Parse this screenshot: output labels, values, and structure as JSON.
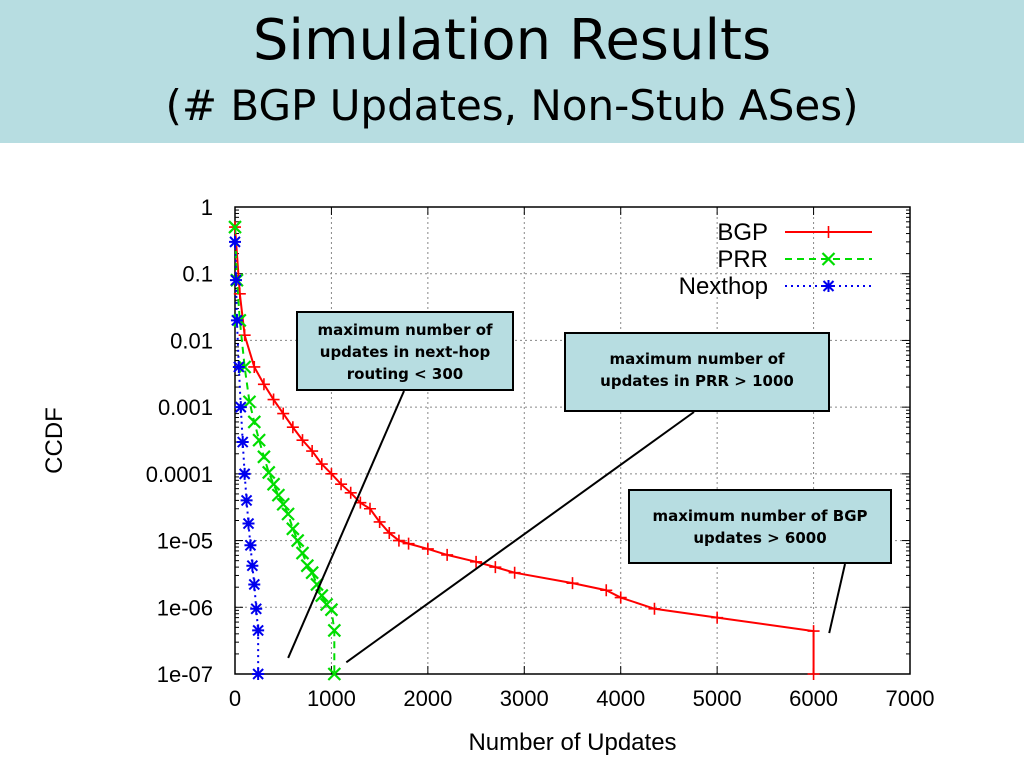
{
  "slide": {
    "title": "Simulation Results",
    "subtitle": "(# BGP Updates, Non-Stub ASes)",
    "accent_color": "#b7dde1"
  },
  "chart_data": {
    "type": "line",
    "xlabel": "Number of Updates",
    "ylabel": "CCDF",
    "xlim": [
      0,
      7000
    ],
    "ylim": [
      1e-07,
      1
    ],
    "yscale": "log",
    "grid": true,
    "legend_position": "top-right",
    "x_ticks": [
      "0",
      "1000",
      "2000",
      "3000",
      "4000",
      "5000",
      "6000",
      "7000"
    ],
    "y_ticks": [
      "1e-07",
      "1e-06",
      "1e-05",
      "0.0001",
      "0.001",
      "0.01",
      "0.1",
      "1"
    ],
    "series": [
      {
        "name": "BGP",
        "color": "#ff0000",
        "marker": "+",
        "linestyle": "solid",
        "x": [
          0,
          50,
          100,
          200,
          300,
          400,
          500,
          600,
          700,
          800,
          900,
          1000,
          1100,
          1200,
          1300,
          1400,
          1500,
          1600,
          1700,
          1800,
          2000,
          2200,
          2500,
          2700,
          2900,
          3500,
          3850,
          4000,
          4350,
          5000,
          6000,
          6000
        ],
        "y": [
          0.5,
          0.05,
          0.012,
          0.004,
          0.0022,
          0.0013,
          0.0008,
          0.0005,
          0.00032,
          0.00022,
          0.00014,
          0.0001,
          7e-05,
          5.2e-05,
          3.7e-05,
          3e-05,
          1.9e-05,
          1.3e-05,
          1e-05,
          9e-06,
          7.5e-06,
          6.1e-06,
          4.8e-06,
          4e-06,
          3.3e-06,
          2.3e-06,
          1.8e-06,
          1.4e-06,
          9.5e-07,
          7e-07,
          4.4e-07,
          1e-07
        ]
      },
      {
        "name": "PRR",
        "color": "#00dd00",
        "marker": "x",
        "linestyle": "dashed",
        "x": [
          0,
          20,
          50,
          100,
          150,
          200,
          250,
          300,
          350,
          400,
          450,
          500,
          550,
          600,
          650,
          700,
          750,
          800,
          850,
          900,
          950,
          1000,
          1030,
          1030
        ],
        "y": [
          0.5,
          0.08,
          0.02,
          0.004,
          0.0012,
          0.0006,
          0.00032,
          0.00018,
          0.000105,
          7e-05,
          4.8e-05,
          3.5e-05,
          2.5e-05,
          1.5e-05,
          1e-05,
          6.5e-06,
          4.2e-06,
          3.3e-06,
          2.2e-06,
          1.5e-06,
          1.1e-06,
          9.2e-07,
          4.5e-07,
          1e-07
        ]
      },
      {
        "name": "Nexthop",
        "color": "#0000ee",
        "marker": "*",
        "linestyle": "dotted",
        "x": [
          0,
          10,
          20,
          40,
          60,
          80,
          100,
          120,
          140,
          160,
          180,
          200,
          220,
          240,
          240
        ],
        "y": [
          0.3,
          0.08,
          0.02,
          0.004,
          0.001,
          0.0003,
          0.0001,
          4e-05,
          1.8e-05,
          8.5e-06,
          4.2e-06,
          2.2e-06,
          9.5e-07,
          4.5e-07,
          1e-07
        ]
      }
    ],
    "annotations": [
      {
        "text": "maximum number of updates in next-hop routing < 300",
        "x": 240,
        "y": 2e-07
      },
      {
        "text": "maximum number of updates in PRR > 1000",
        "x": 1030,
        "y": 1.5e-07
      },
      {
        "text": "maximum number of BGP updates > 6000",
        "x": 6100,
        "y": 4.4e-07
      }
    ]
  }
}
